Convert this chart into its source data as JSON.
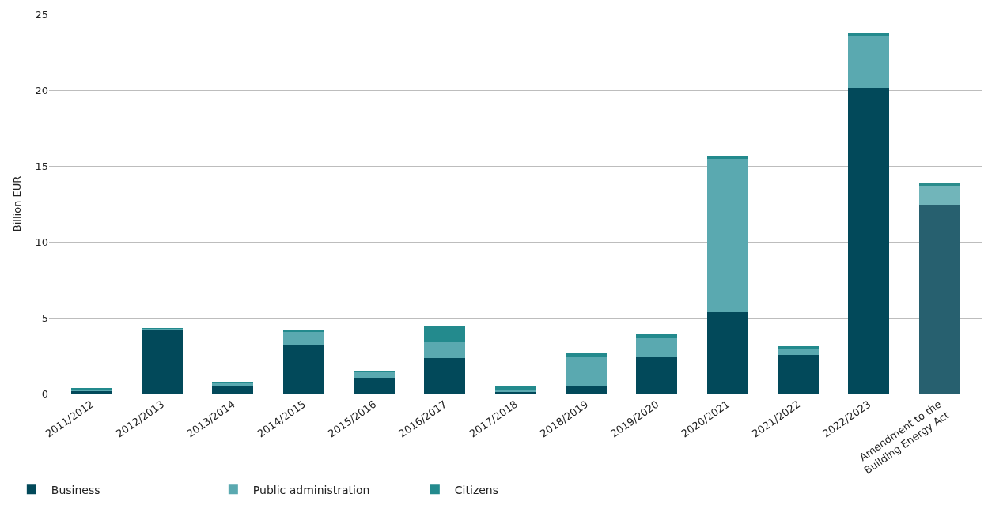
{
  "chart_data": {
    "type": "bar",
    "stacked": true,
    "ylabel": "Billion EUR",
    "categories": [
      "2011/2012",
      "2012/2013",
      "2013/2014",
      "2014/2015",
      "2015/2016",
      "2016/2017",
      "2017/2018",
      "2018/2019",
      "2019/2020",
      "2020/2021",
      "2021/2022",
      "2022/2023",
      "Amendment to the Building Energy Act"
    ],
    "series": [
      {
        "name": "Business",
        "color": "#02495a",
        "colors": [
          null,
          null,
          null,
          null,
          null,
          null,
          null,
          null,
          null,
          null,
          null,
          null,
          "#27606f"
        ],
        "values": [
          0.2,
          4.2,
          0.45,
          3.25,
          1.05,
          2.35,
          0.15,
          0.5,
          2.4,
          5.35,
          2.55,
          20.15,
          12.4
        ]
      },
      {
        "name": "Public administration",
        "color": "#5aa9b0",
        "colors": [
          null,
          null,
          null,
          null,
          null,
          null,
          null,
          null,
          null,
          null,
          null,
          null,
          "#71b5ba"
        ],
        "values": [
          0.1,
          0.1,
          0.3,
          0.85,
          0.4,
          1.05,
          0.1,
          1.9,
          1.25,
          10.15,
          0.45,
          3.45,
          1.3
        ]
      },
      {
        "name": "Citizens",
        "color": "#238a8d",
        "colors": [
          null,
          null,
          null,
          null,
          null,
          null,
          null,
          null,
          null,
          null,
          null,
          null,
          "#2a8c8c"
        ],
        "values": [
          0.02,
          0.02,
          0.02,
          0.02,
          0.05,
          1.1,
          0.2,
          0.25,
          0.25,
          0.1,
          0.1,
          0.15,
          0.15
        ]
      }
    ],
    "ylim": [
      0,
      25
    ],
    "yticks": [
      0,
      5,
      10,
      15,
      20,
      25
    ],
    "grid": "y",
    "legend": "bottom left"
  }
}
